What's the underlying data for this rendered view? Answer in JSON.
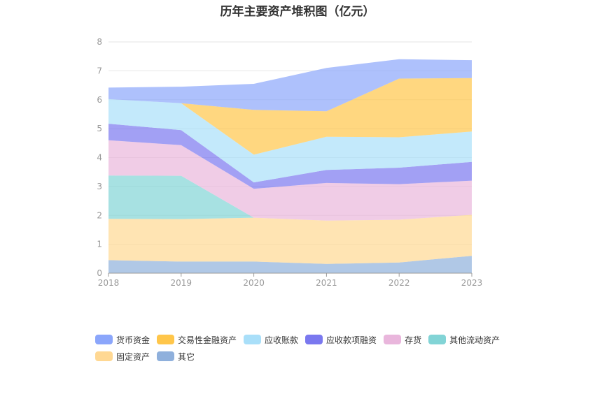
{
  "chart_data": {
    "type": "area",
    "stacked": true,
    "title": "历年主要资产堆积图（亿元）",
    "x": [
      "2018",
      "2019",
      "2020",
      "2021",
      "2022",
      "2023"
    ],
    "ylim": [
      0,
      8
    ],
    "yticks": [
      0,
      1,
      2,
      3,
      4,
      5,
      6,
      7,
      8
    ],
    "grid": true,
    "legend_position": "bottom-left",
    "series": [
      {
        "name": "其它",
        "color": "#8fb0dc",
        "values": [
          0.45,
          0.4,
          0.4,
          0.32,
          0.37,
          0.6
        ]
      },
      {
        "name": "固定资产",
        "color": "#ffd893",
        "values": [
          1.43,
          1.47,
          1.52,
          1.5,
          1.48,
          1.42
        ]
      },
      {
        "name": "其他流动资产",
        "color": "#82d4d6",
        "values": [
          1.5,
          1.5,
          0.0,
          0.0,
          0.0,
          0.0
        ]
      },
      {
        "name": "存货",
        "color": "#e9b6dc",
        "values": [
          1.22,
          1.06,
          1.0,
          1.3,
          1.23,
          1.18
        ]
      },
      {
        "name": "应收款项融资",
        "color": "#7a78ef",
        "values": [
          0.57,
          0.52,
          0.22,
          0.45,
          0.57,
          0.65
        ]
      },
      {
        "name": "应收账款",
        "color": "#a9dff9",
        "values": [
          0.85,
          0.93,
          0.96,
          1.15,
          1.05,
          1.05
        ]
      },
      {
        "name": "交易性金融资产",
        "color": "#ffc64a",
        "values": [
          0.0,
          0.0,
          1.55,
          0.88,
          2.03,
          1.85
        ]
      },
      {
        "name": "货币资金",
        "color": "#8ba6fb",
        "values": [
          0.4,
          0.57,
          0.9,
          1.5,
          0.67,
          0.62
        ]
      }
    ],
    "legend_order": [
      "货币资金",
      "交易性金融资产",
      "应收账款",
      "应收款项融资",
      "存货",
      "其他流动资产",
      "固定资产",
      "其它"
    ]
  }
}
